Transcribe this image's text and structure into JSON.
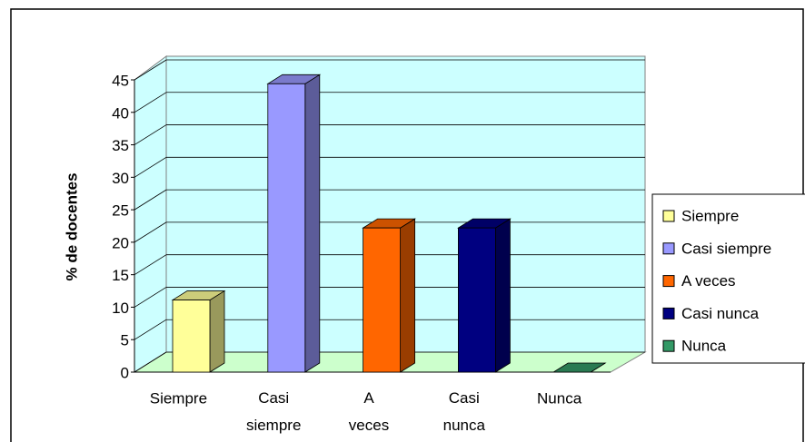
{
  "chart_data": {
    "type": "bar3d",
    "y_label": "% de docentes",
    "categories": [
      "Siempre",
      "Casi siempre",
      "A veces",
      "Casi nunca",
      "Nunca"
    ],
    "values": [
      11.1,
      44.4,
      22.2,
      22.2,
      0
    ],
    "colors": [
      "#ffff99",
      "#9999ff",
      "#ff6600",
      "#000080",
      "#339966"
    ],
    "ylim": [
      0,
      45
    ],
    "yticks": [
      0,
      5,
      10,
      15,
      20,
      25,
      30,
      35,
      40,
      45
    ],
    "grid": true,
    "legend": "right"
  }
}
